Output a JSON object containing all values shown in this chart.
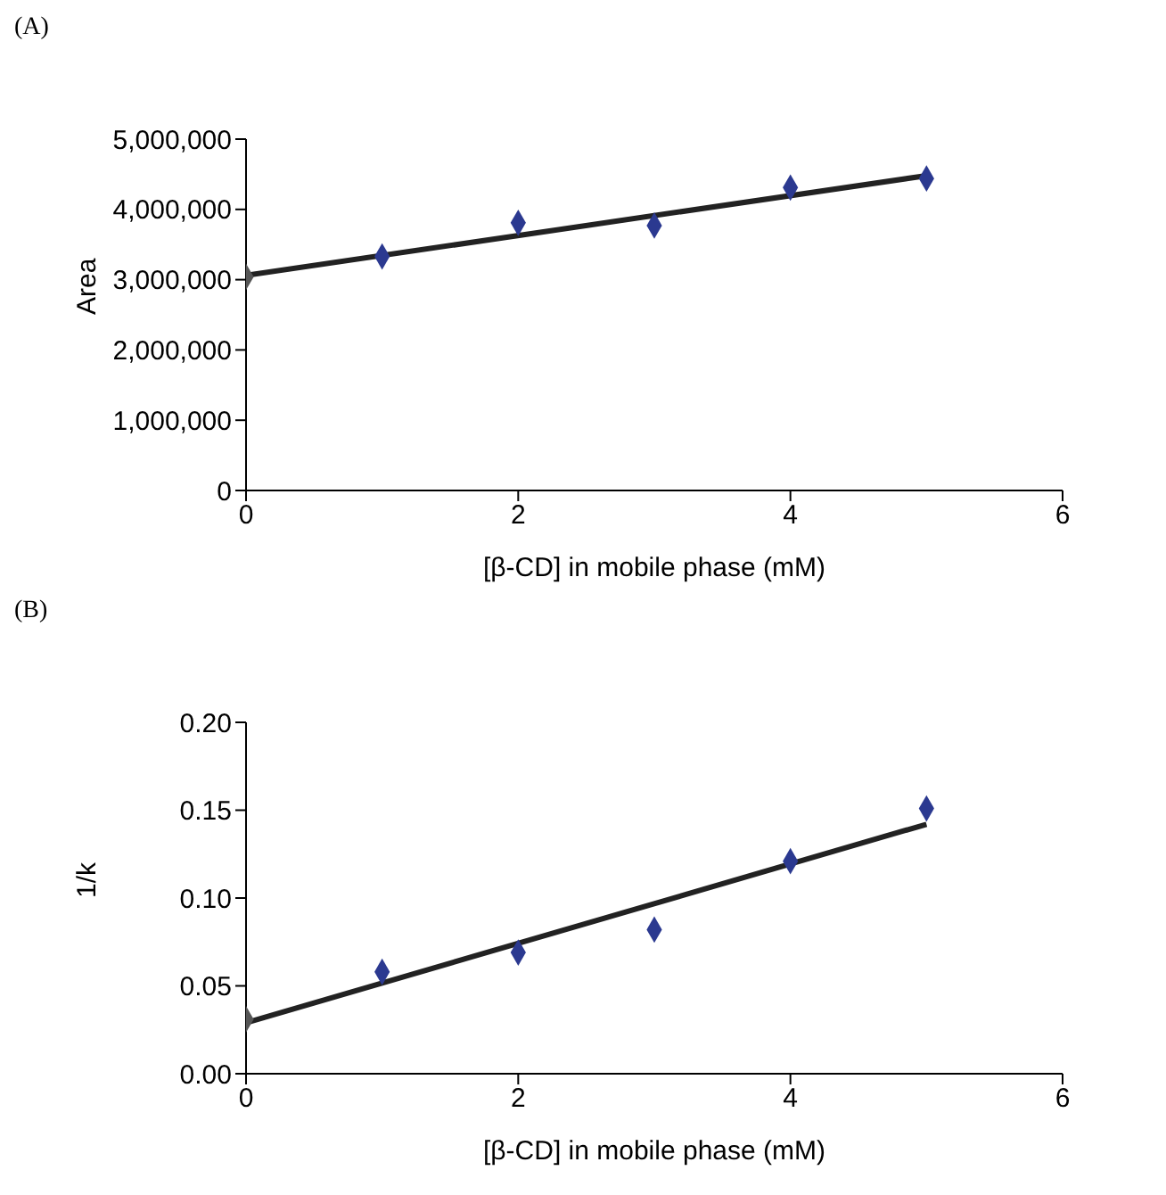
{
  "chart_data": [
    {
      "type": "scatter",
      "title": "(A)",
      "xlabel": "[β-CD] in mobile phase (mM)",
      "ylabel": "Area",
      "xlim": [
        0,
        6
      ],
      "xticks": [
        0,
        2,
        4,
        6
      ],
      "ylim": [
        0,
        5000000
      ],
      "yticks": [
        {
          "value": 0,
          "label": "0"
        },
        {
          "value": 1000000,
          "label": "1,000,000"
        },
        {
          "value": 2000000,
          "label": "2,000,000"
        },
        {
          "value": 3000000,
          "label": "3,000,000"
        },
        {
          "value": 4000000,
          "label": "4,000,000"
        },
        {
          "value": 5000000,
          "label": "5,000,000"
        }
      ],
      "grid": false,
      "marker": "diamond",
      "series": [
        {
          "x": [
            0,
            1,
            2,
            3,
            4,
            5
          ],
          "values": [
            3040000,
            3330000,
            3810000,
            3770000,
            4310000,
            4440000
          ],
          "colors": [
            "#555555",
            "#2b3990",
            "#2b3990",
            "#2b3990",
            "#2b3990",
            "#2b3990"
          ]
        },
        {
          "type": "line",
          "x": [
            0,
            5
          ],
          "values": [
            3060000,
            4480000
          ],
          "color": "#222222",
          "marker": "none",
          "line_style": "solid"
        }
      ]
    },
    {
      "type": "scatter",
      "title": "(B)",
      "xlabel": "[β-CD] in mobile phase (mM)",
      "ylabel": "1/k",
      "xlim": [
        0,
        6
      ],
      "xticks": [
        0,
        2,
        4,
        6
      ],
      "ylim": [
        0,
        0.2
      ],
      "yticks": [
        {
          "value": 0,
          "label": "0.00"
        },
        {
          "value": 0.05,
          "label": "0.05"
        },
        {
          "value": 0.1,
          "label": "0.10"
        },
        {
          "value": 0.15,
          "label": "0.15"
        },
        {
          "value": 0.2,
          "label": "0.20"
        }
      ],
      "grid": false,
      "marker": "diamond",
      "series": [
        {
          "x": [
            0,
            1,
            2,
            3,
            4,
            5
          ],
          "values": [
            0.031,
            0.058,
            0.069,
            0.082,
            0.121,
            0.151
          ],
          "colors": [
            "#555555",
            "#2b3990",
            "#2b3990",
            "#2b3990",
            "#2b3990",
            "#2b3990"
          ]
        },
        {
          "type": "line",
          "x": [
            0,
            5
          ],
          "values": [
            0.029,
            0.142
          ],
          "color": "#222222",
          "marker": "none",
          "line_style": "solid"
        }
      ]
    }
  ]
}
